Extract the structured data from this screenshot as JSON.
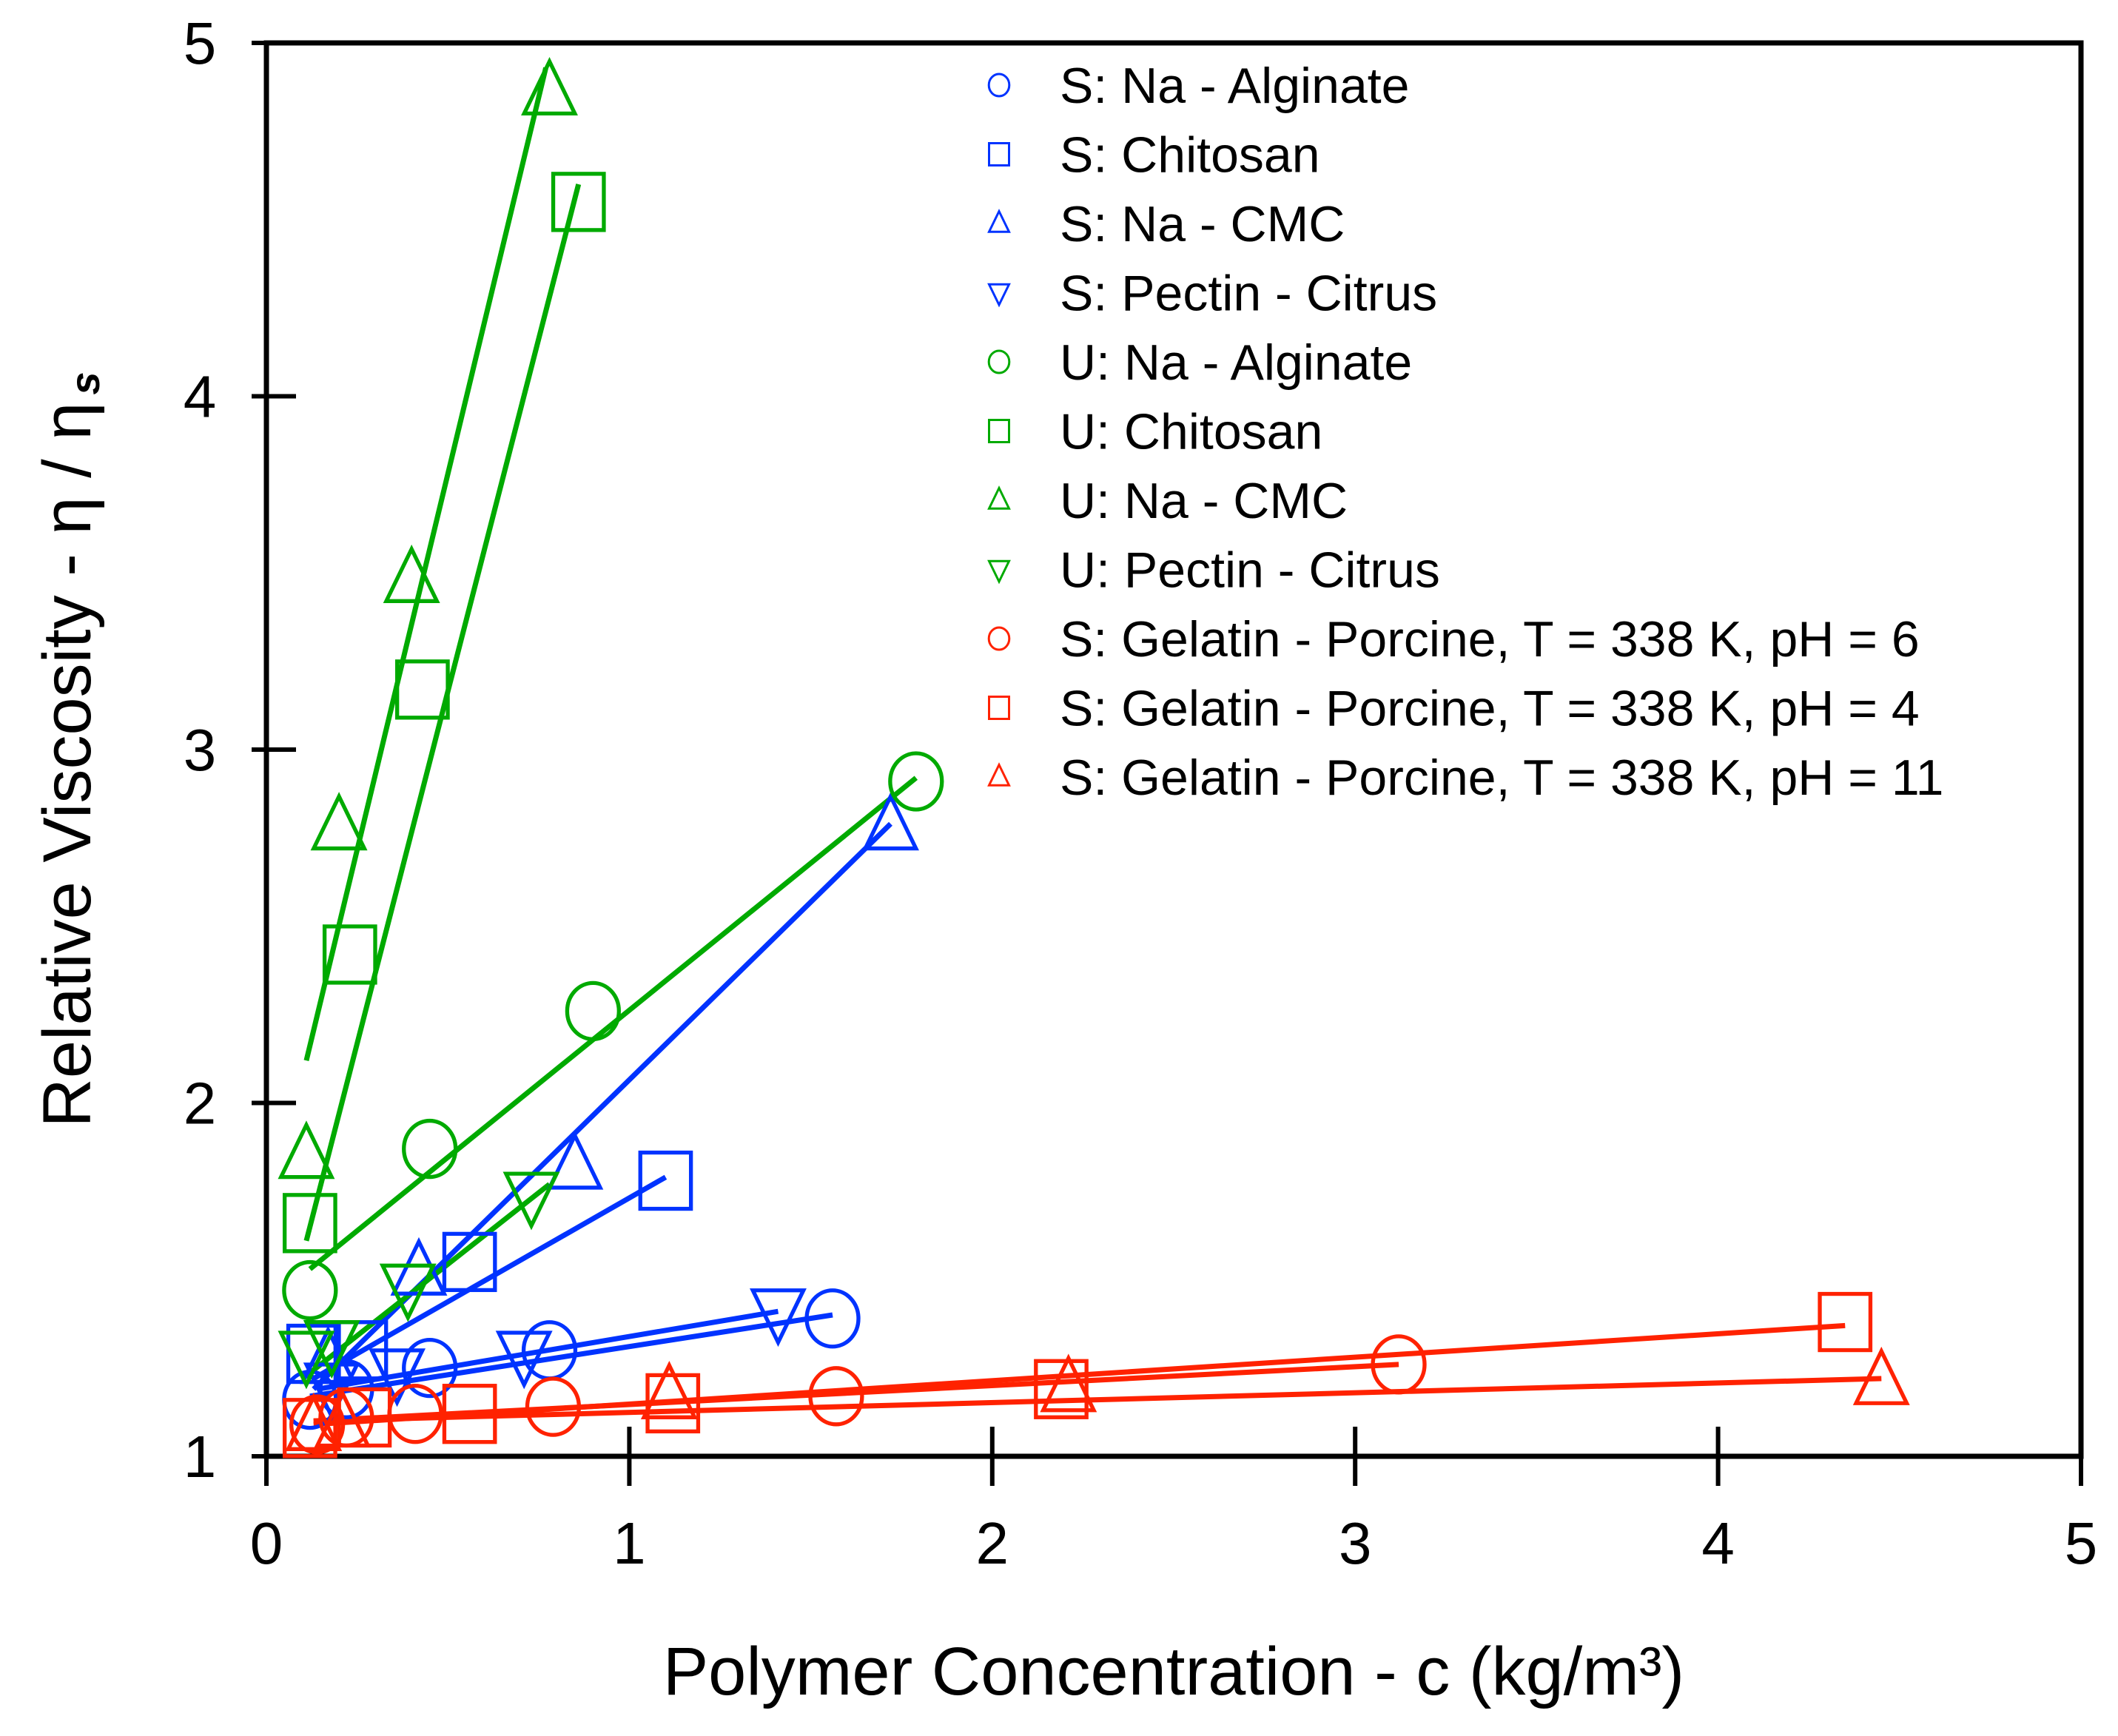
{
  "chart_data": {
    "type": "scatter",
    "title": "",
    "xlabel": "Polymer Concentration - c (kg/m³)",
    "ylabel": "Relative Viscosity - η / η",
    "ylabel_subscript": "s",
    "xlim": [
      0,
      5
    ],
    "ylim": [
      1,
      5
    ],
    "xticks": [
      "0",
      "1",
      "2",
      "3",
      "4",
      "5"
    ],
    "yticks": [
      "1",
      "2",
      "3",
      "4",
      "5"
    ],
    "grid": false,
    "legend_position": "upper right (inside)",
    "series": [
      {
        "name": "S: Na - Alginate",
        "color": "#0033ff",
        "marker": "circle",
        "x": [
          0.12,
          0.22,
          0.45,
          0.78,
          1.56
        ],
        "y": [
          1.16,
          1.19,
          1.25,
          1.3,
          1.39
        ],
        "fit": [
          [
            0.12,
            1.17
          ],
          [
            1.56,
            1.4
          ]
        ]
      },
      {
        "name": "S: Chitosan",
        "color": "#0033ff",
        "marker": "square",
        "x": [
          0.13,
          0.26,
          0.56,
          1.1
        ],
        "y": [
          1.29,
          1.3,
          1.55,
          1.78
        ],
        "fit": [
          [
            0.13,
            1.22
          ],
          [
            1.1,
            1.79
          ]
        ]
      },
      {
        "name": "S: Na - CMC",
        "color": "#0033ff",
        "marker": "triangle-up",
        "x": [
          0.17,
          0.42,
          0.85,
          1.72
        ],
        "y": [
          1.27,
          1.52,
          1.82,
          2.78
        ],
        "fit": [
          [
            0.13,
            1.19
          ],
          [
            1.72,
            2.79
          ]
        ]
      },
      {
        "name": "S: Pectin - Citrus",
        "color": "#0033ff",
        "marker": "triangle-down",
        "x": [
          0.18,
          0.36,
          0.71,
          1.41
        ],
        "y": [
          1.2,
          1.24,
          1.29,
          1.41
        ],
        "fit": [
          [
            0.14,
            1.19
          ],
          [
            1.41,
            1.41
          ]
        ]
      },
      {
        "name": "U: Na - Alginate",
        "color": "#00aa00",
        "marker": "circle",
        "x": [
          0.12,
          0.45,
          0.9,
          1.79
        ],
        "y": [
          1.47,
          1.87,
          2.26,
          2.91
        ],
        "fit": [
          [
            0.12,
            1.53
          ],
          [
            1.79,
            2.92
          ]
        ]
      },
      {
        "name": "U: Chitosan",
        "color": "#00aa00",
        "marker": "square",
        "x": [
          0.12,
          0.23,
          0.43,
          0.86
        ],
        "y": [
          1.66,
          2.42,
          3.17,
          4.55
        ],
        "fit": [
          [
            0.11,
            1.61
          ],
          [
            0.86,
            4.6
          ]
        ]
      },
      {
        "name": "U: Na - CMC",
        "color": "#00aa00",
        "marker": "triangle-up",
        "x": [
          0.11,
          0.2,
          0.4,
          0.78
        ],
        "y": [
          1.85,
          2.78,
          3.48,
          4.86
        ],
        "fit": [
          [
            0.11,
            2.12
          ],
          [
            0.77,
            4.93
          ]
        ]
      },
      {
        "name": "U: Pectin - Citrus",
        "color": "#00aa00",
        "marker": "triangle-down",
        "x": [
          0.11,
          0.18,
          0.39,
          0.73
        ],
        "y": [
          1.29,
          1.32,
          1.48,
          1.74
        ],
        "fit": [
          [
            0.1,
            1.22
          ],
          [
            0.78,
            1.77
          ]
        ]
      },
      {
        "name": "S: Gelatin - Porcine, T = 338 K, pH = 6",
        "color": "#ff2200",
        "marker": "circle",
        "x": [
          0.14,
          0.22,
          0.41,
          0.79,
          1.57,
          3.12
        ],
        "y": [
          1.09,
          1.11,
          1.12,
          1.14,
          1.17,
          1.26
        ],
        "fit": [
          [
            0.13,
            1.1
          ],
          [
            3.12,
            1.26
          ]
        ]
      },
      {
        "name": "S: Gelatin - Porcine, T = 338 K, pH = 4",
        "color": "#ff2200",
        "marker": "square",
        "x": [
          0.12,
          0.27,
          0.56,
          1.12,
          2.19,
          4.35
        ],
        "y": [
          1.08,
          1.11,
          1.12,
          1.15,
          1.19,
          1.38
        ],
        "fit": [
          [
            0.13,
            1.09
          ],
          [
            4.35,
            1.37
          ]
        ]
      },
      {
        "name": "S: Gelatin - Porcine, T = 338 K, pH = 11",
        "color": "#ff2200",
        "marker": "triangle-up",
        "x": [
          0.13,
          0.21,
          1.11,
          2.21,
          4.45
        ],
        "y": [
          1.08,
          1.09,
          1.17,
          1.19,
          1.21
        ],
        "fit": [
          [
            0.13,
            1.1
          ],
          [
            4.45,
            1.22
          ]
        ]
      }
    ]
  },
  "axes": {
    "x_title": "Polymer Concentration - c (kg/m³)",
    "y_title_main": "Relative Viscosity - η / η",
    "y_title_sub": "s"
  },
  "legend": [
    {
      "label": "S: Na - Alginate",
      "color": "#0033ff",
      "marker": "circle"
    },
    {
      "label": "S: Chitosan",
      "color": "#0033ff",
      "marker": "square"
    },
    {
      "label": "S: Na - CMC",
      "color": "#0033ff",
      "marker": "triangle-up"
    },
    {
      "label": "S: Pectin - Citrus",
      "color": "#0033ff",
      "marker": "triangle-down"
    },
    {
      "label": "U: Na - Alginate",
      "color": "#00aa00",
      "marker": "circle"
    },
    {
      "label": "U: Chitosan",
      "color": "#00aa00",
      "marker": "square"
    },
    {
      "label": "U: Na - CMC",
      "color": "#00aa00",
      "marker": "triangle-up"
    },
    {
      "label": "U: Pectin - Citrus",
      "color": "#00aa00",
      "marker": "triangle-down"
    },
    {
      "label": "S: Gelatin - Porcine, T = 338 K, pH = 6",
      "color": "#ff2200",
      "marker": "circle"
    },
    {
      "label": "S: Gelatin - Porcine, T = 338 K, pH = 4",
      "color": "#ff2200",
      "marker": "square"
    },
    {
      "label": "S: Gelatin - Porcine, T = 338 K, pH = 11",
      "color": "#ff2200",
      "marker": "triangle-up"
    }
  ]
}
